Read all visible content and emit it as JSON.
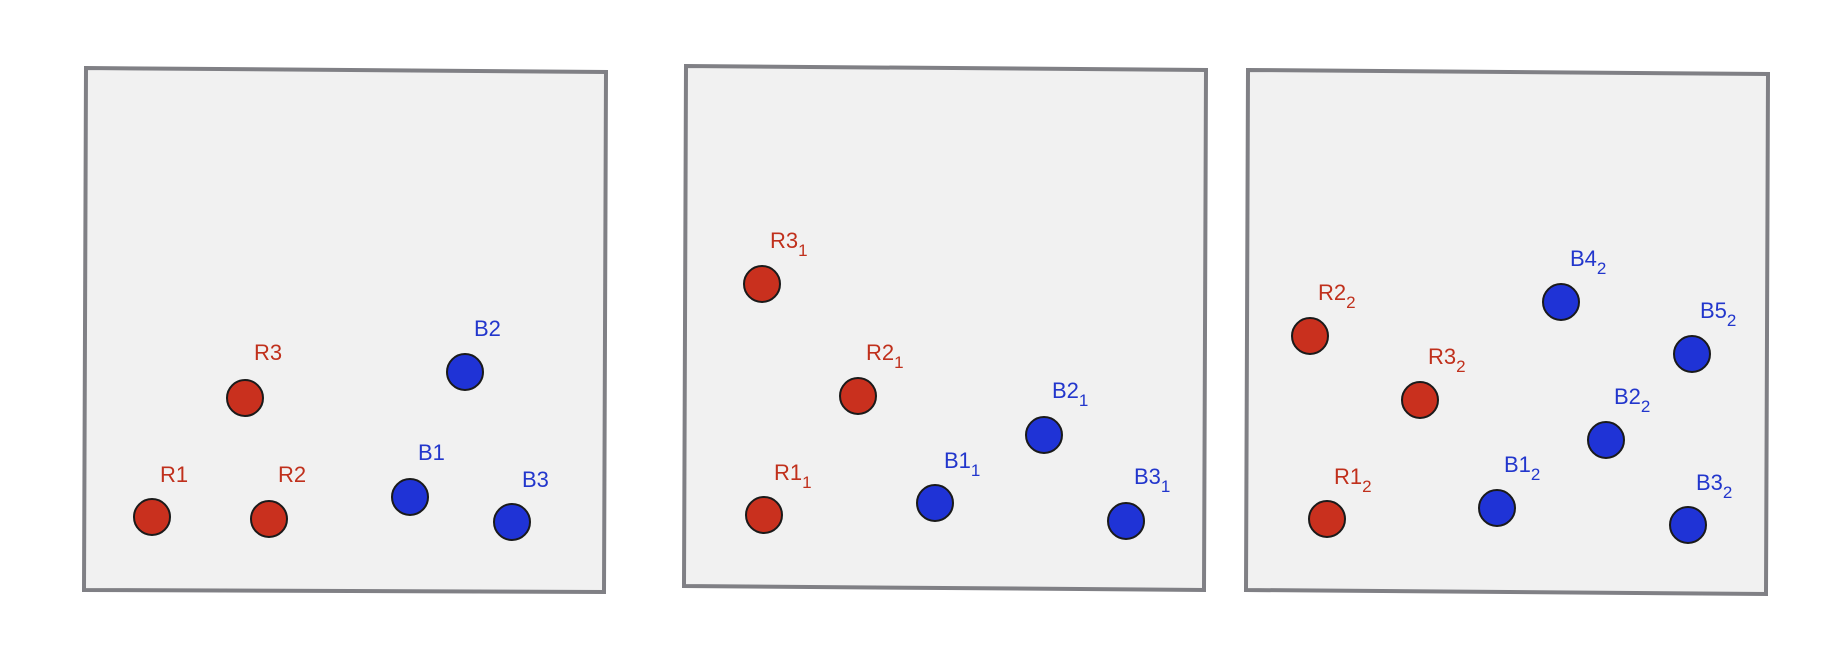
{
  "colors": {
    "red_fill": "#c9301e",
    "red_text": "#c0301c",
    "blue_fill": "#1f33d6",
    "blue_text": "#2236cc",
    "panel_fill": "#f1f1f1",
    "panel_border": "#808085"
  },
  "panels": [
    {
      "dots": [
        {
          "id": "R1",
          "color": "red",
          "label": "R1",
          "sub": ""
        },
        {
          "id": "R2",
          "color": "red",
          "label": "R2",
          "sub": ""
        },
        {
          "id": "R3",
          "color": "red",
          "label": "R3",
          "sub": ""
        },
        {
          "id": "B1",
          "color": "blue",
          "label": "B1",
          "sub": ""
        },
        {
          "id": "B2",
          "color": "blue",
          "label": "B2",
          "sub": ""
        },
        {
          "id": "B3",
          "color": "blue",
          "label": "B3",
          "sub": ""
        }
      ]
    },
    {
      "dots": [
        {
          "id": "R3_1",
          "color": "red",
          "label": "R3",
          "sub": "1"
        },
        {
          "id": "R2_1",
          "color": "red",
          "label": "R2",
          "sub": "1"
        },
        {
          "id": "R1_1",
          "color": "red",
          "label": "R1",
          "sub": "1"
        },
        {
          "id": "B1_1",
          "color": "blue",
          "label": "B1",
          "sub": "1"
        },
        {
          "id": "B2_1",
          "color": "blue",
          "label": "B2",
          "sub": "1"
        },
        {
          "id": "B3_1",
          "color": "blue",
          "label": "B3",
          "sub": "1"
        }
      ]
    },
    {
      "dots": [
        {
          "id": "R2_2",
          "color": "red",
          "label": "R2",
          "sub": "2"
        },
        {
          "id": "R3_2",
          "color": "red",
          "label": "R3",
          "sub": "2"
        },
        {
          "id": "R1_2",
          "color": "red",
          "label": "R1",
          "sub": "2"
        },
        {
          "id": "B4_2",
          "color": "blue",
          "label": "B4",
          "sub": "2"
        },
        {
          "id": "B5_2",
          "color": "blue",
          "label": "B5",
          "sub": "2"
        },
        {
          "id": "B2_2",
          "color": "blue",
          "label": "B2",
          "sub": "2"
        },
        {
          "id": "B1_2",
          "color": "blue",
          "label": "B1",
          "sub": "2"
        },
        {
          "id": "B3_2",
          "color": "blue",
          "label": "B3",
          "sub": "2"
        }
      ]
    }
  ]
}
